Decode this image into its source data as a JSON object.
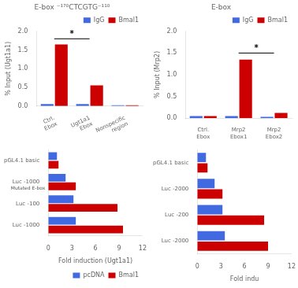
{
  "chart_data": [
    {
      "type": "bar",
      "title": "E-box ⁻¹⁷⁰CTCGTG⁻¹¹⁰",
      "y_label": "% Input (Ugt1a1)",
      "categories": [
        "Ctrl.\nEbox",
        "Ugt1a1\nEbox",
        "Nonspecific\nregion"
      ],
      "series": [
        {
          "name": "IgG",
          "color": "#4169e1",
          "values": [
            0.05,
            0.05,
            0.02
          ]
        },
        {
          "name": "Bmal1",
          "color": "#cc0000",
          "values": [
            1.65,
            0.55,
            0.02
          ]
        }
      ],
      "ylim": [
        0,
        2.0
      ],
      "yticks": [
        {
          "value": 0,
          "label": "0.0"
        },
        0.5,
        {
          "value": 1,
          "label": "1.0"
        },
        1.5,
        {
          "value": 2,
          "label": "2.0"
        }
      ],
      "grid": false,
      "legend": "upper right",
      "annotations": [
        {
          "text": "*",
          "y": 1.8,
          "between": [
            0,
            1
          ]
        }
      ]
    },
    {
      "type": "bar",
      "title": "E-box",
      "y_label": "% Input (Mrp2)",
      "categories": [
        "Ctrl.\nEbox",
        "Mrp2\nEbox1",
        "Mrp2\nEbox2"
      ],
      "series": [
        {
          "name": "IgG",
          "color": "#4169e1",
          "values": [
            0.05,
            0.05,
            0.03
          ]
        },
        {
          "name": "Bmal1",
          "color": "#cc0000",
          "values": [
            0.05,
            1.35,
            0.12
          ]
        }
      ],
      "ylim": [
        0,
        2.0
      ],
      "yticks": [
        {
          "value": 0,
          "label": "0.0"
        },
        0.5,
        {
          "value": 1,
          "label": "1.0"
        },
        1.5,
        {
          "value": 2,
          "label": "2.0"
        }
      ],
      "grid": false,
      "legend": "upper right",
      "annotations": [
        {
          "text": "*",
          "y": 1.5,
          "between": [
            1,
            2
          ]
        }
      ]
    },
    {
      "type": "bar",
      "orientation": "horizontal",
      "x_label": "Fold induction (Ugt1a1)",
      "categories": [
        "Luc -1000",
        "Luc -100",
        "Luc -1000",
        "pGL4.1 basic"
      ],
      "series": [
        {
          "name": "pcDNA",
          "color": "#4169e1",
          "values": [
            3.5,
            3.2,
            2.2,
            1.1
          ]
        },
        {
          "name": "Bmal1",
          "color": "#cc0000",
          "values": [
            9.5,
            8.8,
            3.5,
            1.3
          ]
        }
      ],
      "xlim": [
        0,
        12
      ],
      "xticks": [
        0,
        3,
        6,
        9,
        12
      ],
      "grid": false,
      "legend": "lower right",
      "annotations": [
        {
          "text": "Mutated E-box",
          "row": 2
        }
      ]
    },
    {
      "type": "bar",
      "orientation": "horizontal",
      "x_label": "Fold indu",
      "categories": [
        "Luc -2000",
        "Luc -200",
        "Luc -2000",
        "pGL4.1 basic"
      ],
      "series": [
        {
          "name": "pcDNA",
          "color": "#4169e1",
          "values": [
            3.5,
            3.2,
            2.2,
            1.1
          ]
        },
        {
          "name": "Bmal1",
          "color": "#cc0000",
          "values": [
            9.0,
            8.5,
            3.2,
            1.3
          ]
        }
      ],
      "xlim": [
        0,
        12
      ],
      "xticks": [
        0,
        3,
        6,
        9,
        12
      ],
      "grid": false
    }
  ]
}
